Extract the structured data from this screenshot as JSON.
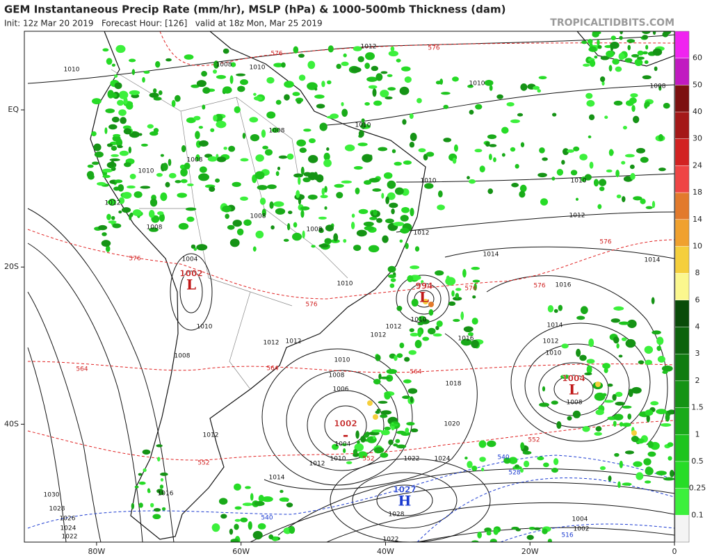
{
  "header": {
    "title": "GEM Instantaneous Precip Rate (mm/hr), MSLP (hPa) & 1000-500mb Thickness (dam)",
    "subtitle": "Init: 12z Mar 20 2019   Forecast Hour: [126]   valid at 18z Mon, Mar 25 2019",
    "site": "TROPICALTIDBITS.COM"
  },
  "map": {
    "xlim": [
      -90,
      0
    ],
    "ylim": [
      -55,
      10
    ],
    "xticks": [
      {
        "value": -80,
        "label": "80W"
      },
      {
        "value": -60,
        "label": "60W"
      },
      {
        "value": -40,
        "label": "40W"
      },
      {
        "value": -20,
        "label": "20W"
      },
      0
    ],
    "yticks": [
      {
        "value": 0,
        "label": "EQ"
      },
      {
        "value": -20,
        "label": "20S"
      },
      {
        "value": -40,
        "label": "40S"
      }
    ],
    "pressure_centers": [
      {
        "value": 1002,
        "label": "L"
      },
      {
        "value": 994,
        "label": "L"
      },
      {
        "value": 1004,
        "label": "L"
      },
      {
        "value": 1002,
        "label": "-"
      },
      {
        "value": 1027,
        "label": "H"
      }
    ],
    "isobar_labels": [
      1012,
      1010,
      1008,
      1010,
      1010,
      1008,
      1008,
      1010,
      1008,
      1010,
      1010,
      1010,
      1012,
      1008,
      1008,
      1008,
      1012,
      1012,
      1014,
      1014,
      1004,
      1010,
      1016,
      1010,
      1010,
      1012,
      1014,
      1012,
      1012,
      1012,
      1016,
      1012,
      1008,
      1010,
      1010,
      1008,
      1018,
      1006,
      1008,
      1020,
      1004,
      1012,
      1010,
      1012,
      1022,
      1024,
      1014,
      1016,
      1030,
      1028,
      1026,
      1024,
      1022,
      1028,
      1022,
      1004,
      1002
    ],
    "thickness_labels": [
      576,
      576,
      576,
      576,
      576,
      576,
      576,
      564,
      564,
      564,
      552,
      552,
      552
    ],
    "cold_thickness_labels": [
      540,
      528,
      540,
      516
    ]
  },
  "colorbar": {
    "ticks": [
      0.1,
      0.25,
      0.5,
      1,
      1.5,
      2,
      3,
      4,
      6,
      8,
      10,
      14,
      18,
      24,
      30,
      40,
      50,
      60
    ],
    "colors": [
      "#f4f4f4",
      "#3cf03c",
      "#27dc27",
      "#1ec41e",
      "#19aa19",
      "#159315",
      "#107b10",
      "#0c630c",
      "#094b09",
      "#fbf78e",
      "#f5cf3c",
      "#f0a12e",
      "#e27a2c",
      "#ef4545",
      "#d22222",
      "#a41818",
      "#7c1010",
      "#c11ac1",
      "#f024f0"
    ]
  }
}
